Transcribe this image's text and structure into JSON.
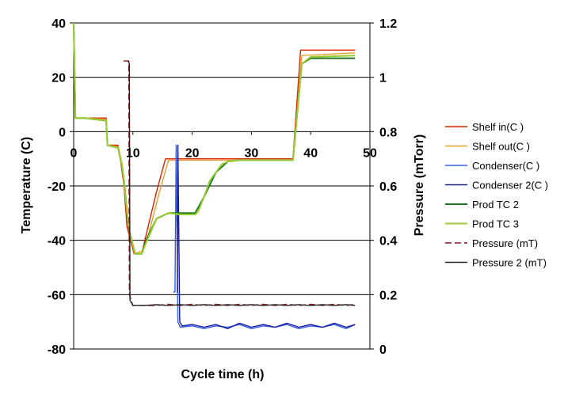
{
  "chart_data": {
    "type": "line",
    "xlabel": "Cycle time (h)",
    "ylabel_left": "Temperature (C)",
    "ylabel_right": "Pressure (mTorr)",
    "xlim": [
      0,
      50
    ],
    "ylim_left": [
      -80,
      40
    ],
    "ylim_right": [
      0,
      1.2
    ],
    "x_ticks": [
      "0",
      "10",
      "20",
      "30",
      "40",
      "50"
    ],
    "y_left_ticks": [
      "40",
      "20",
      "0",
      "-20",
      "-40",
      "-60",
      "-80"
    ],
    "y_right_ticks": [
      "1.2",
      "1",
      "0.8",
      "0.6",
      "0.4",
      "0.2",
      "0"
    ],
    "grid": "horizontal",
    "legend_position": "right",
    "series": [
      {
        "name": "Shelf in(C )",
        "axis": "left",
        "color": "#dd2200",
        "dash": "none",
        "points": [
          [
            0,
            40
          ],
          [
            0.3,
            5
          ],
          [
            2,
            5
          ],
          [
            5.5,
            5
          ],
          [
            5.7,
            -5
          ],
          [
            7.5,
            -5
          ],
          [
            8,
            -12
          ],
          [
            8.5,
            -20
          ],
          [
            9,
            -35
          ],
          [
            10.2,
            -45
          ],
          [
            11.5,
            -45
          ],
          [
            12,
            -40
          ],
          [
            14,
            -22
          ],
          [
            15.5,
            -10
          ],
          [
            37,
            -10
          ],
          [
            38.3,
            30
          ],
          [
            47.5,
            30
          ]
        ]
      },
      {
        "name": "Shelf out(C )",
        "axis": "left",
        "color": "#e8a030",
        "dash": "none",
        "points": [
          [
            0,
            40
          ],
          [
            0.3,
            5
          ],
          [
            2,
            5
          ],
          [
            5.5,
            4.5
          ],
          [
            5.7,
            -5
          ],
          [
            7.5,
            -5.5
          ],
          [
            8.2,
            -12
          ],
          [
            8.6,
            -20
          ],
          [
            9.2,
            -35
          ],
          [
            10.3,
            -45
          ],
          [
            11.5,
            -44
          ],
          [
            12.5,
            -39
          ],
          [
            14.5,
            -22
          ],
          [
            16,
            -10.5
          ],
          [
            37,
            -10.5
          ],
          [
            38.5,
            28
          ],
          [
            47.5,
            29
          ]
        ]
      },
      {
        "name": "Condenser(C )",
        "axis": "left",
        "color": "#3060e0",
        "dash": "none",
        "points": [
          [
            16.8,
            -59
          ],
          [
            17.1,
            -59
          ],
          [
            17.3,
            -5
          ],
          [
            17.6,
            -70
          ],
          [
            18,
            -72
          ],
          [
            20,
            -71.5
          ],
          [
            22,
            -72.5
          ],
          [
            24,
            -71.5
          ],
          [
            26,
            -72
          ],
          [
            28,
            -71
          ],
          [
            30,
            -72.5
          ],
          [
            32,
            -71.5
          ],
          [
            34,
            -72
          ],
          [
            36,
            -71
          ],
          [
            38,
            -72.5
          ],
          [
            40,
            -71.5
          ],
          [
            42,
            -72
          ],
          [
            44,
            -71
          ],
          [
            46,
            -72.5
          ],
          [
            47.5,
            -71
          ]
        ]
      },
      {
        "name": "Condenser 2(C )",
        "axis": "left",
        "color": "#1a1aa0",
        "dash": "none",
        "points": [
          [
            17.4,
            -59
          ],
          [
            17.5,
            -59
          ],
          [
            17.6,
            -5
          ],
          [
            17.9,
            -70
          ],
          [
            18.3,
            -71.5
          ],
          [
            20,
            -71
          ],
          [
            22,
            -72
          ],
          [
            24,
            -71
          ],
          [
            26,
            -72.5
          ],
          [
            28,
            -70.5
          ],
          [
            30,
            -72
          ],
          [
            32,
            -71
          ],
          [
            34,
            -72
          ],
          [
            36,
            -70.5
          ],
          [
            38,
            -72
          ],
          [
            40,
            -71
          ],
          [
            42,
            -72
          ],
          [
            44,
            -70.5
          ],
          [
            46,
            -72
          ],
          [
            47.5,
            -71
          ]
        ]
      },
      {
        "name": "Prod TC 2",
        "axis": "left",
        "color": "#1e7a1e",
        "dash": "none",
        "points": [
          [
            0,
            40
          ],
          [
            0.3,
            5
          ],
          [
            2,
            5
          ],
          [
            5.5,
            4
          ],
          [
            5.7,
            -5
          ],
          [
            7.5,
            -6
          ],
          [
            8.2,
            -13
          ],
          [
            8.6,
            -20
          ],
          [
            9.3,
            -36
          ],
          [
            10.4,
            -45
          ],
          [
            11.5,
            -45
          ],
          [
            12.2,
            -40
          ],
          [
            14,
            -32
          ],
          [
            16,
            -30
          ],
          [
            18,
            -30
          ],
          [
            20.5,
            -30
          ],
          [
            21,
            -28
          ],
          [
            22,
            -24
          ],
          [
            24,
            -15
          ],
          [
            26,
            -11
          ],
          [
            28,
            -10.5
          ],
          [
            37,
            -10.5
          ],
          [
            38.5,
            25
          ],
          [
            40,
            27
          ],
          [
            47.5,
            27
          ]
        ]
      },
      {
        "name": "Prod TC 3",
        "axis": "left",
        "color": "#9acd32",
        "dash": "none",
        "points": [
          [
            0,
            40
          ],
          [
            0.3,
            5
          ],
          [
            2,
            5
          ],
          [
            5.5,
            4
          ],
          [
            5.7,
            -5
          ],
          [
            7.5,
            -6
          ],
          [
            8.2,
            -13
          ],
          [
            8.6,
            -20
          ],
          [
            9.3,
            -36
          ],
          [
            10.4,
            -45
          ],
          [
            11.5,
            -45
          ],
          [
            12.2,
            -41
          ],
          [
            14,
            -32
          ],
          [
            16,
            -30
          ],
          [
            18,
            -30.5
          ],
          [
            20.5,
            -30.5
          ],
          [
            21,
            -29.5
          ],
          [
            22,
            -24
          ],
          [
            23,
            -18
          ],
          [
            24,
            -15
          ],
          [
            25,
            -12
          ],
          [
            26,
            -11
          ],
          [
            28,
            -10.5
          ],
          [
            37,
            -10.5
          ],
          [
            38.5,
            25
          ],
          [
            40,
            27.5
          ],
          [
            47.5,
            28
          ]
        ]
      },
      {
        "name": "Pressure (mT)",
        "axis": "right",
        "color": "#8b1a1a",
        "dash": "8,4",
        "points": [
          [
            8.4,
            1.06
          ],
          [
            9.3,
            1.06
          ],
          [
            9.4,
            0.2
          ],
          [
            10,
            0.16
          ],
          [
            12,
            0.16
          ],
          [
            14,
            0.16
          ],
          [
            16,
            0.165
          ],
          [
            18,
            0.16
          ],
          [
            20,
            0.165
          ],
          [
            22,
            0.16
          ],
          [
            24,
            0.165
          ],
          [
            26,
            0.16
          ],
          [
            28,
            0.165
          ],
          [
            30,
            0.16
          ],
          [
            32,
            0.165
          ],
          [
            34,
            0.16
          ],
          [
            36,
            0.165
          ],
          [
            38,
            0.16
          ],
          [
            40,
            0.165
          ],
          [
            42,
            0.16
          ],
          [
            44,
            0.165
          ],
          [
            46,
            0.16
          ],
          [
            47.5,
            0.165
          ]
        ]
      },
      {
        "name": "Pressure 2 (mT)",
        "axis": "right",
        "color": "#222222",
        "dash": "none",
        "points": [
          [
            9.2,
            1.06
          ],
          [
            9.4,
            1.05
          ],
          [
            9.5,
            0.18
          ],
          [
            10,
            0.16
          ],
          [
            12,
            0.16
          ],
          [
            14,
            0.163
          ],
          [
            16,
            0.16
          ],
          [
            18,
            0.163
          ],
          [
            20,
            0.16
          ],
          [
            22,
            0.163
          ],
          [
            24,
            0.16
          ],
          [
            26,
            0.163
          ],
          [
            28,
            0.16
          ],
          [
            30,
            0.163
          ],
          [
            32,
            0.16
          ],
          [
            34,
            0.163
          ],
          [
            36,
            0.16
          ],
          [
            38,
            0.163
          ],
          [
            40,
            0.16
          ],
          [
            42,
            0.163
          ],
          [
            44,
            0.16
          ],
          [
            46,
            0.163
          ],
          [
            47.5,
            0.16
          ]
        ]
      }
    ]
  }
}
